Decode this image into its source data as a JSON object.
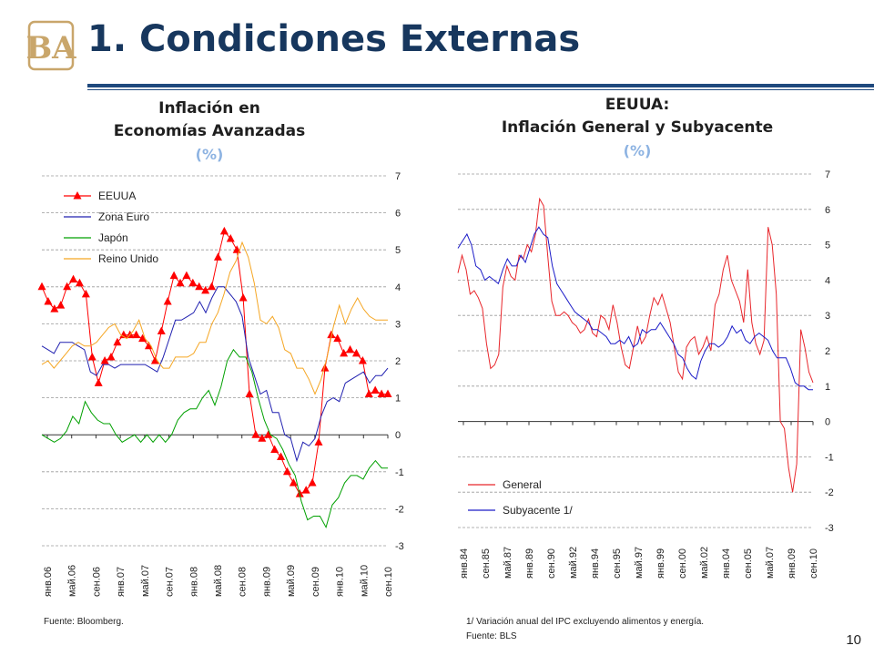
{
  "slide": {
    "title": "1. Condiciones Externas",
    "page_number": "10",
    "logo_letters": "BA"
  },
  "colors": {
    "title": "#17375e",
    "rule": "#1f497d",
    "unit": "#8db3e2",
    "eeuua": "#ff0000",
    "zona_euro": "#2020b0",
    "japon": "#00a000",
    "reino_unido": "#f5a623",
    "general": "#e8262b",
    "subyacente": "#1c1cc8"
  },
  "chart_data": [
    {
      "type": "line",
      "title_line1": "Inflación en",
      "title_line2": "Economías Avanzadas",
      "unit": "(%)",
      "ylim": [
        -3,
        7
      ],
      "yticks": [
        "7",
        "6",
        "5",
        "4",
        "3",
        "2",
        "1",
        "0",
        "-1",
        "-2",
        "-3"
      ],
      "grid": true,
      "legend": "top-left",
      "x_ticks": [
        "янв.06",
        "май.06",
        "сен.06",
        "янв.07",
        "май.07",
        "сен.07",
        "янв.08",
        "май.08",
        "сен.08",
        "янв.09",
        "май.09",
        "сен.09",
        "янв.10",
        "май.10",
        "сен.10"
      ],
      "series": [
        {
          "name": "EEUUA",
          "color": "#ff0000",
          "marker": "triangle",
          "values": [
            4.0,
            3.6,
            3.4,
            3.5,
            4.0,
            4.2,
            4.1,
            3.8,
            2.1,
            1.4,
            2.0,
            2.1,
            2.5,
            2.7,
            2.7,
            2.7,
            2.6,
            2.4,
            2.0,
            2.8,
            3.6,
            4.3,
            4.1,
            4.3,
            4.1,
            4.0,
            3.9,
            4.0,
            4.8,
            5.5,
            5.3,
            5.0,
            3.7,
            1.1,
            0.0,
            -0.1,
            0.0,
            -0.4,
            -0.6,
            -1.0,
            -1.3,
            -1.6,
            -1.5,
            -1.3,
            -0.2,
            1.8,
            2.7,
            2.6,
            2.2,
            2.3,
            2.2,
            2.0,
            1.1,
            1.2,
            1.1,
            1.1
          ]
        },
        {
          "name": "Zona Euro",
          "color": "#2020b0",
          "values": [
            2.4,
            2.3,
            2.2,
            2.5,
            2.5,
            2.5,
            2.4,
            2.3,
            1.7,
            1.6,
            1.9,
            1.9,
            1.8,
            1.9,
            1.9,
            1.9,
            1.9,
            1.9,
            1.8,
            1.7,
            2.1,
            2.6,
            3.1,
            3.1,
            3.2,
            3.3,
            3.6,
            3.3,
            3.7,
            4.0,
            4.0,
            3.8,
            3.6,
            3.2,
            2.1,
            1.6,
            1.1,
            1.2,
            0.6,
            0.6,
            0.0,
            -0.1,
            -0.7,
            -0.2,
            -0.3,
            -0.1,
            0.5,
            0.9,
            1.0,
            0.9,
            1.4,
            1.5,
            1.6,
            1.7,
            1.4,
            1.6,
            1.6,
            1.8
          ]
        },
        {
          "name": "Japón",
          "color": "#00a000",
          "values": [
            0.0,
            -0.1,
            -0.2,
            -0.1,
            0.1,
            0.5,
            0.3,
            0.9,
            0.6,
            0.4,
            0.3,
            0.3,
            0.0,
            -0.2,
            -0.1,
            0.0,
            -0.2,
            0.0,
            -0.2,
            0.0,
            -0.2,
            0.0,
            0.4,
            0.6,
            0.7,
            0.7,
            1.0,
            1.2,
            0.8,
            1.3,
            2.0,
            2.3,
            2.1,
            2.1,
            1.7,
            1.0,
            0.4,
            0.0,
            -0.1,
            -0.4,
            -0.8,
            -1.1,
            -1.8,
            -2.3,
            -2.2,
            -2.2,
            -2.5,
            -1.9,
            -1.7,
            -1.3,
            -1.1,
            -1.1,
            -1.2,
            -0.9,
            -0.7,
            -0.9,
            -0.9
          ]
        },
        {
          "name": "Reino Unido",
          "color": "#f5a623",
          "values": [
            1.9,
            2.0,
            1.8,
            2.0,
            2.2,
            2.4,
            2.5,
            2.4,
            2.4,
            2.5,
            2.7,
            2.9,
            3.0,
            2.7,
            2.6,
            2.8,
            3.1,
            2.6,
            2.4,
            2.0,
            1.8,
            1.8,
            2.1,
            2.1,
            2.1,
            2.2,
            2.5,
            2.5,
            3.0,
            3.3,
            3.8,
            4.4,
            4.7,
            5.2,
            4.8,
            4.1,
            3.1,
            3.0,
            3.2,
            2.9,
            2.3,
            2.2,
            1.8,
            1.8,
            1.5,
            1.1,
            1.5,
            2.1,
            2.9,
            3.5,
            3.0,
            3.4,
            3.7,
            3.4,
            3.2,
            3.1,
            3.1,
            3.1
          ]
        }
      ]
    },
    {
      "type": "line",
      "title_line1": "EEUUA:",
      "title_line2": "Inflación General y Subyacente",
      "unit": "(%)",
      "ylim": [
        -3,
        7
      ],
      "yticks": [
        "7",
        "6",
        "5",
        "4",
        "3",
        "2",
        "1",
        "0",
        "-1",
        "-2",
        "-3"
      ],
      "grid": true,
      "legend": "bottom-left",
      "x_ticks": [
        "янв.84",
        "сен.85",
        "май.87",
        "янв.89",
        "сен.90",
        "май.92",
        "янв.94",
        "сен.95",
        "май.97",
        "янв.99",
        "сен.00",
        "май.02",
        "янв.04",
        "сен.05",
        "май.07",
        "янв.09",
        "сен.10"
      ],
      "series": [
        {
          "name": "General",
          "color": "#e8262b",
          "values": [
            4.2,
            4.7,
            4.3,
            3.6,
            3.7,
            3.5,
            3.2,
            2.2,
            1.5,
            1.6,
            1.9,
            3.8,
            4.4,
            4.1,
            4.0,
            4.7,
            4.6,
            5.0,
            4.8,
            5.3,
            6.3,
            6.1,
            4.7,
            3.4,
            3.0,
            3.0,
            3.1,
            3.0,
            2.8,
            2.7,
            2.5,
            2.6,
            2.9,
            2.5,
            2.4,
            3.0,
            2.9,
            2.6,
            3.3,
            2.8,
            2.1,
            1.6,
            1.5,
            2.1,
            2.7,
            2.2,
            2.4,
            3.0,
            3.5,
            3.3,
            3.6,
            3.2,
            2.8,
            2.1,
            1.4,
            1.2,
            2.1,
            2.3,
            2.4,
            1.9,
            2.1,
            2.4,
            2.0,
            3.3,
            3.6,
            4.3,
            4.7,
            4.0,
            3.7,
            3.4,
            2.8,
            4.3,
            2.8,
            2.2,
            1.9,
            2.3,
            5.5,
            5.0,
            3.6,
            0.0,
            -0.2,
            -1.3,
            -2.0,
            -1.2,
            2.6,
            2.1,
            1.4,
            1.1
          ]
        },
        {
          "name": "Subyacente 1/",
          "color": "#1c1cc8",
          "values": [
            4.9,
            5.1,
            5.3,
            5.0,
            4.4,
            4.3,
            4.0,
            4.1,
            4.0,
            3.9,
            4.3,
            4.6,
            4.4,
            4.4,
            4.7,
            4.5,
            4.9,
            5.3,
            5.5,
            5.3,
            5.2,
            4.4,
            3.9,
            3.7,
            3.5,
            3.3,
            3.1,
            3.0,
            2.9,
            2.8,
            2.6,
            2.6,
            2.5,
            2.4,
            2.2,
            2.2,
            2.3,
            2.2,
            2.4,
            2.1,
            2.2,
            2.6,
            2.5,
            2.6,
            2.6,
            2.8,
            2.6,
            2.4,
            2.2,
            1.9,
            1.8,
            1.5,
            1.3,
            1.2,
            1.7,
            2.0,
            2.2,
            2.2,
            2.1,
            2.2,
            2.4,
            2.7,
            2.5,
            2.6,
            2.3,
            2.2,
            2.4,
            2.5,
            2.4,
            2.3,
            2.0,
            1.8,
            1.8,
            1.8,
            1.5,
            1.1,
            1.0,
            1.0,
            0.9,
            0.9
          ]
        }
      ]
    }
  ],
  "footer": {
    "source_left": "Fuente: Bloomberg.",
    "note_right": "1/ Variación anual del IPC excluyendo alimentos y energía.",
    "source_right": "Fuente: BLS"
  }
}
